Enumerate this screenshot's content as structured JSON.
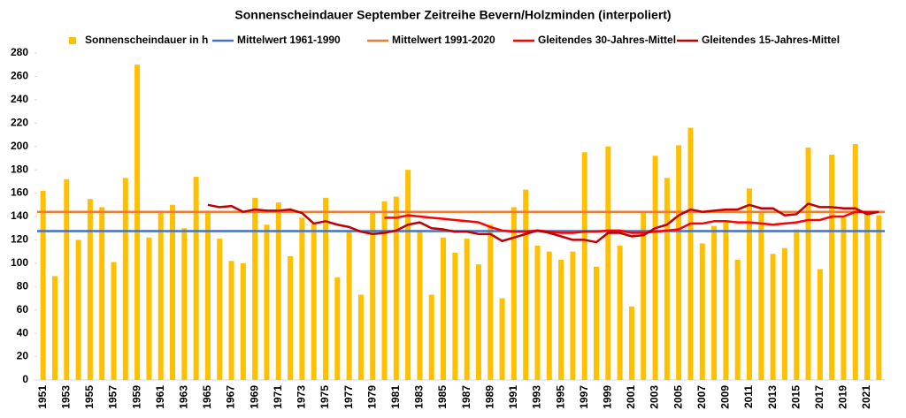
{
  "chart_data": {
    "type": "bar",
    "title": "Sonnenscheindauer September Zeitreihe Bevern/Holzminden (interpoliert)",
    "categories": [
      "1951",
      null,
      "1953",
      null,
      "1955",
      null,
      "1957",
      null,
      "1959",
      null,
      "1961",
      null,
      "1963",
      null,
      "1965",
      null,
      "1967",
      null,
      "1969",
      null,
      "1971",
      null,
      "1973",
      null,
      "1975",
      null,
      "1977",
      null,
      "1979",
      null,
      "1981",
      null,
      "1983",
      null,
      "1985",
      null,
      "1987",
      null,
      "1989",
      null,
      "1991",
      null,
      "1993",
      null,
      "1995",
      null,
      "1997",
      null,
      "1999",
      null,
      "2001",
      null,
      "2003",
      null,
      "2005",
      null,
      "2007",
      null,
      "2009",
      null,
      "2011",
      null,
      "2013",
      null,
      "2015",
      null,
      "2017",
      null,
      "2019",
      null,
      "2021",
      null
    ],
    "series": [
      {
        "name": "Sonnenscheindauer in h",
        "type": "bar",
        "color": "#ffc000",
        "values": [
          162,
          89,
          172,
          120,
          155,
          148,
          101,
          173,
          270,
          122,
          145,
          150,
          130,
          174,
          145,
          121,
          102,
          100,
          156,
          133,
          152,
          106,
          139,
          134,
          156,
          88,
          127,
          73,
          144,
          153,
          157,
          180,
          127,
          73,
          122,
          109,
          121,
          99,
          133,
          70,
          148,
          163,
          115,
          110,
          103,
          110,
          195,
          97,
          200,
          115,
          63,
          143,
          192,
          173,
          201,
          216,
          117,
          132,
          136,
          103,
          164,
          144,
          108,
          113,
          129,
          199,
          95,
          193,
          139,
          202,
          143,
          141
        ]
      },
      {
        "name": "Mittelwert 1961-1990",
        "type": "hline",
        "color": "#4472c4",
        "value": 127.5
      },
      {
        "name": "Mittelwert 1991-2020",
        "type": "hline",
        "color": "#ed7d31",
        "value": 144
      },
      {
        "name": "Gleitendes 30-Jahres-Mittel",
        "type": "line",
        "color": "#ff0000",
        "values": [
          null,
          null,
          null,
          null,
          null,
          null,
          null,
          null,
          null,
          null,
          null,
          null,
          null,
          null,
          null,
          null,
          null,
          null,
          null,
          null,
          null,
          null,
          null,
          null,
          null,
          null,
          null,
          null,
          null,
          139,
          139,
          141,
          140,
          139,
          138,
          137,
          136,
          135,
          131,
          128,
          127,
          127,
          128,
          127,
          126,
          126,
          127,
          127,
          128,
          128,
          126,
          126,
          127,
          128,
          129,
          134,
          134,
          136,
          136,
          135,
          135,
          134,
          133,
          134,
          135,
          137,
          137,
          140,
          140,
          144,
          144,
          144
        ]
      },
      {
        "name": "Gleitendes 15-Jahres-Mittel",
        "type": "line",
        "color": "#c00000",
        "values": [
          null,
          null,
          null,
          null,
          null,
          null,
          null,
          null,
          null,
          null,
          null,
          null,
          null,
          null,
          150,
          148,
          149,
          144,
          146,
          145,
          145,
          146,
          143,
          134,
          136,
          133,
          131,
          127,
          125,
          126,
          128,
          133,
          135,
          130,
          129,
          127,
          127,
          125,
          125,
          119,
          122,
          125,
          128,
          126,
          123,
          120,
          120,
          118,
          126,
          126,
          123,
          124,
          130,
          133,
          141,
          146,
          144,
          145,
          146,
          146,
          150,
          147,
          147,
          141,
          142,
          151,
          148,
          148,
          147,
          147,
          142,
          144
        ]
      }
    ],
    "ylim": [
      0,
      280
    ],
    "yticks": [
      0,
      20,
      40,
      60,
      80,
      100,
      120,
      140,
      160,
      180,
      200,
      220,
      240,
      260,
      280
    ],
    "grid": false
  }
}
